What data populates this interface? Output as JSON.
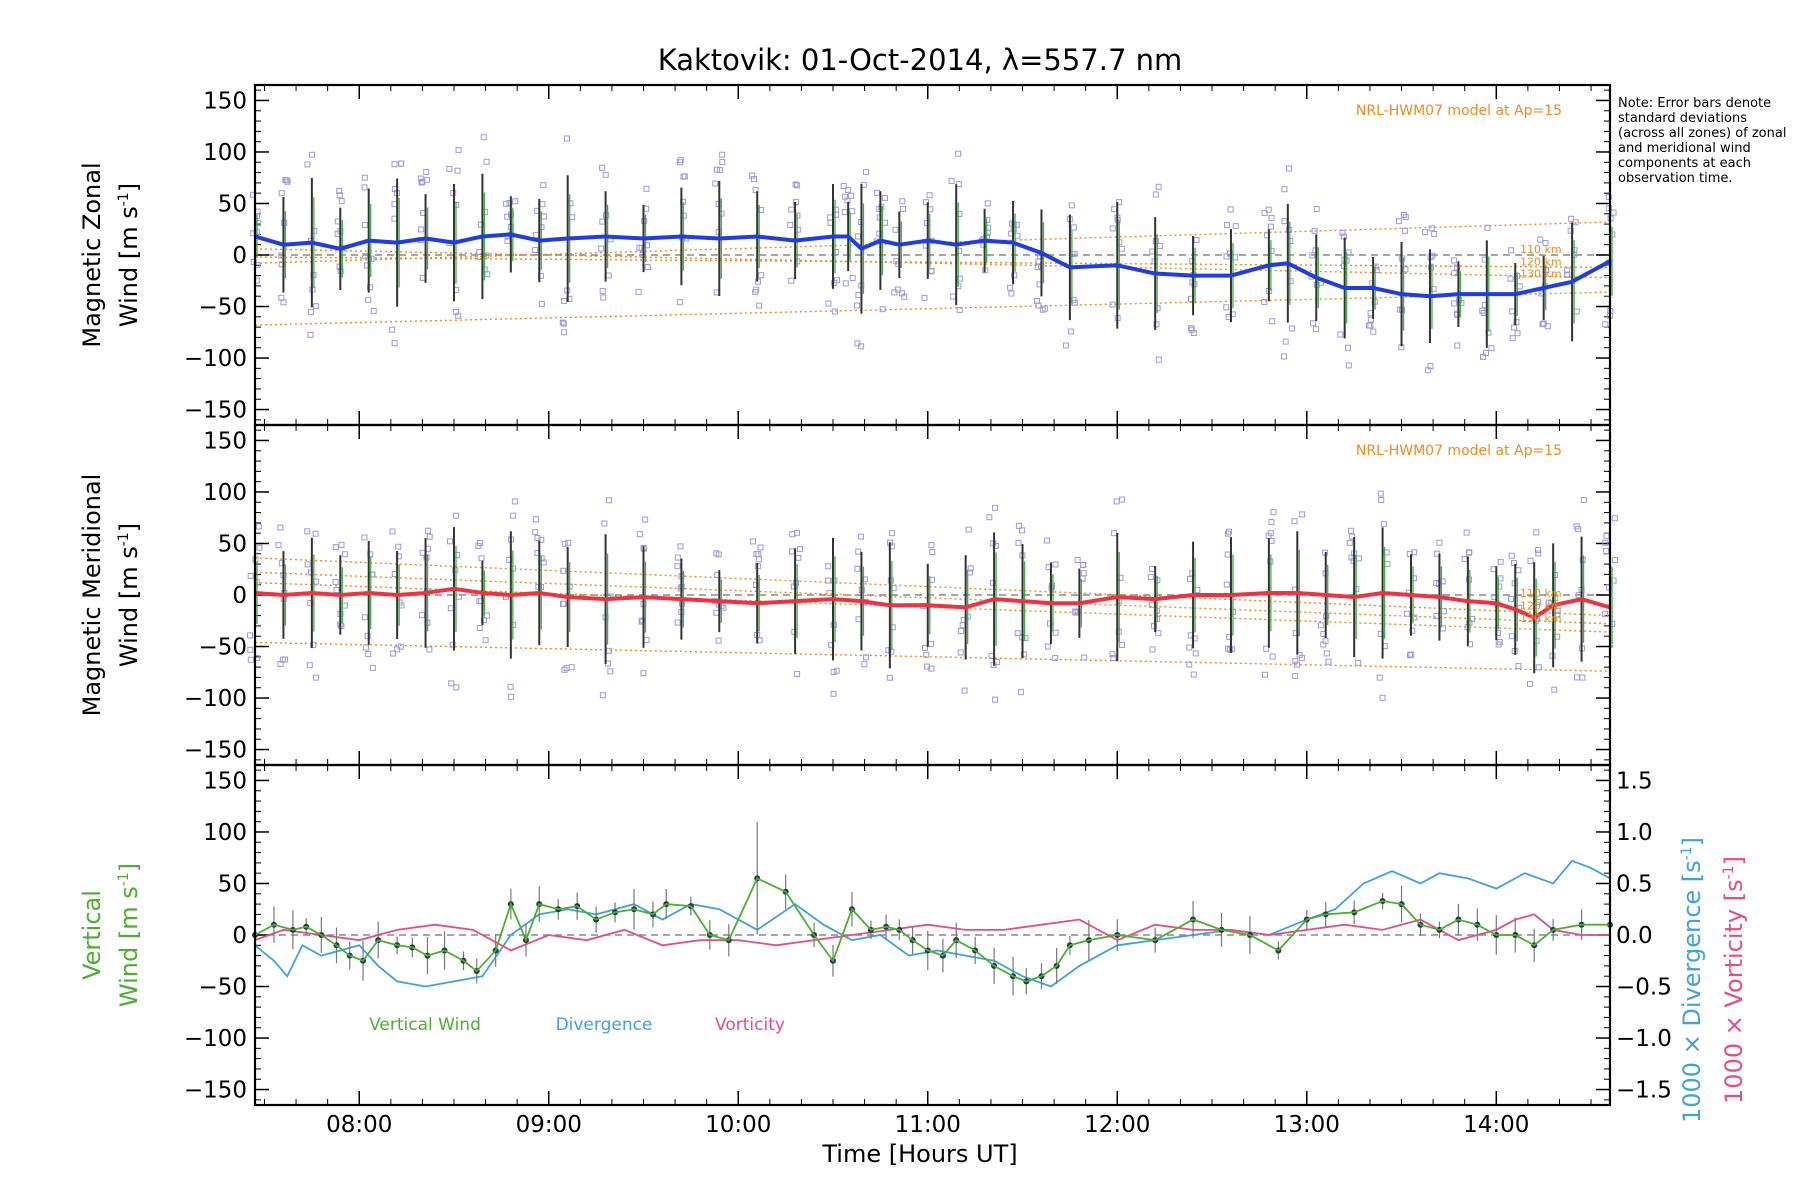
{
  "title": "Kaktovik: 01-Oct-2014, λ=557.7 nm",
  "note": "Note: Error bars denote standard deviations (across all zones) of zonal and meridional wind components at each observation time.",
  "xaxis": {
    "label": "Time [Hours UT]",
    "range_hours": [
      7.45,
      14.6
    ],
    "tick_hours": [
      8,
      9,
      10,
      11,
      12,
      13,
      14
    ],
    "tick_labels": [
      "08:00",
      "09:00",
      "10:00",
      "11:00",
      "12:00",
      "13:00",
      "14:00"
    ]
  },
  "colors": {
    "zonal": "#1f3de6",
    "meridional": "#f2303f",
    "model": "#f28a1e",
    "scatter": "#9a9ae0",
    "vertical": "#4caf2e",
    "divergence": "#3fa3d8",
    "vorticity": "#ec4a84",
    "errbar": "#333333"
  },
  "chart_data": [
    {
      "type": "line",
      "panel": "zonal",
      "ylabel_lines": [
        "Magnetic Zonal",
        "Wind [m s-1]"
      ],
      "ylim": [
        -165,
        165
      ],
      "y_ticks": [
        150,
        100,
        50,
        0,
        -50,
        -100,
        -150
      ],
      "y_tick_labels": [
        "150",
        "100",
        "50",
        "0",
        "−50",
        "−100",
        "−150"
      ],
      "annotation": "NRL-HWM07 model at Ap=15",
      "model_labels": [
        "110 km",
        "120 km",
        "130 km"
      ],
      "series": [
        {
          "name": "Zonal wind",
          "x": [
            7.45,
            7.6,
            7.75,
            7.9,
            8.05,
            8.2,
            8.35,
            8.5,
            8.65,
            8.8,
            8.95,
            9.1,
            9.3,
            9.5,
            9.7,
            9.9,
            10.1,
            10.3,
            10.5,
            10.58,
            10.65,
            10.75,
            10.85,
            11.0,
            11.15,
            11.3,
            11.45,
            11.6,
            11.75,
            12.0,
            12.2,
            12.4,
            12.6,
            12.8,
            12.9,
            13.05,
            13.2,
            13.35,
            13.5,
            13.65,
            13.8,
            13.95,
            14.1,
            14.25,
            14.4,
            14.6
          ],
          "values": [
            18,
            10,
            12,
            6,
            14,
            12,
            16,
            12,
            18,
            20,
            14,
            16,
            18,
            16,
            18,
            16,
            18,
            14,
            18,
            18,
            6,
            14,
            10,
            14,
            10,
            14,
            12,
            2,
            -12,
            -10,
            -18,
            -20,
            -20,
            -10,
            -8,
            -22,
            -32,
            -32,
            -38,
            -40,
            -38,
            -38,
            -38,
            -32,
            -26,
            -6
          ]
        }
      ],
      "model_curves": [
        {
          "name": "high",
          "x": [
            7.45,
            14.6
          ],
          "values": [
            -8,
            32
          ]
        },
        {
          "name": "mid-1",
          "x": [
            7.45,
            14.6
          ],
          "values": [
            -2,
            -12
          ]
        },
        {
          "name": "mid-2",
          "x": [
            7.45,
            14.6
          ],
          "values": [
            6,
            -22
          ]
        },
        {
          "name": "low",
          "x": [
            7.45,
            14.6
          ],
          "values": [
            -68,
            -36
          ]
        }
      ]
    },
    {
      "type": "line",
      "panel": "meridional",
      "ylabel_lines": [
        "Magnetic Meridional",
        "Wind [m s-1]"
      ],
      "ylim": [
        -165,
        165
      ],
      "y_ticks": [
        150,
        100,
        50,
        0,
        -50,
        -100,
        -150
      ],
      "y_tick_labels": [
        "150",
        "100",
        "50",
        "0",
        "−50",
        "−100",
        "−150"
      ],
      "annotation": "NRL-HWM07 model at Ap=15",
      "model_labels": [
        "110 km",
        "120 km",
        "130 km"
      ],
      "series": [
        {
          "name": "Meridional wind",
          "x": [
            7.45,
            7.6,
            7.75,
            7.9,
            8.05,
            8.2,
            8.35,
            8.5,
            8.65,
            8.8,
            8.95,
            9.1,
            9.3,
            9.5,
            9.7,
            9.9,
            10.1,
            10.3,
            10.5,
            10.65,
            10.8,
            11.0,
            11.2,
            11.35,
            11.5,
            11.65,
            11.8,
            12.0,
            12.2,
            12.4,
            12.6,
            12.8,
            12.95,
            13.1,
            13.25,
            13.4,
            13.55,
            13.7,
            13.85,
            14.0,
            14.1,
            14.2,
            14.3,
            14.45,
            14.6
          ],
          "values": [
            2,
            0,
            2,
            0,
            2,
            0,
            2,
            6,
            2,
            0,
            2,
            -2,
            -4,
            -2,
            -4,
            -6,
            -8,
            -6,
            -4,
            -6,
            -10,
            -10,
            -12,
            -4,
            -6,
            -8,
            -8,
            -2,
            -4,
            0,
            0,
            2,
            2,
            0,
            -2,
            2,
            0,
            -2,
            -6,
            -8,
            -14,
            -22,
            -10,
            -4,
            -12
          ]
        }
      ],
      "model_curves": [
        {
          "name": "high",
          "x": [
            7.45,
            14.6
          ],
          "values": [
            36,
            -20
          ]
        },
        {
          "name": "mid-1",
          "x": [
            7.45,
            14.6
          ],
          "values": [
            22,
            -28
          ]
        },
        {
          "name": "mid-2",
          "x": [
            7.45,
            14.6
          ],
          "values": [
            12,
            -36
          ]
        },
        {
          "name": "low",
          "x": [
            7.45,
            14.6
          ],
          "values": [
            -46,
            -74
          ]
        }
      ]
    },
    {
      "type": "line",
      "panel": "vertical",
      "ylabel_lines": [
        "Vertical",
        "Wind [m s-1]"
      ],
      "ylim": [
        -165,
        165
      ],
      "y_ticks": [
        150,
        100,
        50,
        0,
        -50,
        -100,
        -150
      ],
      "y_tick_labels": [
        "150",
        "100",
        "50",
        "0",
        "−50",
        "−100",
        "−150"
      ],
      "y2label_lines": [
        "1000 × Divergence [s-1]",
        "1000 × Vorticity [s-1]"
      ],
      "y2lim": [
        -1.65,
        1.65
      ],
      "y2_ticks": [
        1.5,
        1.0,
        0.5,
        0.0,
        -0.5,
        -1.0,
        -1.5
      ],
      "y2_tick_labels": [
        "1.5",
        "1.0",
        "0.5",
        "0.0",
        "−0.5",
        "−1.0",
        "−1.5"
      ],
      "legend": [
        "Vertical Wind",
        "Divergence",
        "Vorticity"
      ],
      "series": [
        {
          "name": "Vertical Wind",
          "x": [
            7.45,
            7.55,
            7.65,
            7.72,
            7.8,
            7.88,
            7.95,
            8.02,
            8.1,
            8.2,
            8.28,
            8.36,
            8.45,
            8.55,
            8.62,
            8.72,
            8.8,
            8.88,
            8.95,
            9.05,
            9.15,
            9.25,
            9.35,
            9.45,
            9.55,
            9.62,
            9.75,
            9.85,
            9.95,
            10.1,
            10.25,
            10.4,
            10.5,
            10.6,
            10.7,
            10.78,
            10.85,
            10.92,
            11.0,
            11.08,
            11.15,
            11.25,
            11.35,
            11.45,
            11.52,
            11.6,
            11.68,
            11.75,
            11.85,
            12.0,
            12.2,
            12.4,
            12.55,
            12.7,
            12.85,
            13.0,
            13.1,
            13.25,
            13.4,
            13.5,
            13.6,
            13.7,
            13.8,
            13.9,
            14.0,
            14.1,
            14.2,
            14.3,
            14.45,
            14.6
          ],
          "values": [
            0,
            10,
            5,
            8,
            0,
            -10,
            -20,
            -25,
            -5,
            -10,
            -12,
            -20,
            -15,
            -25,
            -35,
            -15,
            30,
            -5,
            30,
            25,
            28,
            15,
            22,
            25,
            20,
            30,
            28,
            0,
            -5,
            55,
            42,
            0,
            -25,
            25,
            5,
            8,
            5,
            -5,
            -15,
            -20,
            -5,
            -15,
            -30,
            -40,
            -45,
            -40,
            -30,
            -10,
            -5,
            0,
            -5,
            15,
            5,
            0,
            -15,
            15,
            20,
            22,
            33,
            30,
            10,
            5,
            15,
            10,
            0,
            0,
            -10,
            5,
            10,
            10
          ]
        },
        {
          "name": "Divergence",
          "x": [
            7.45,
            7.55,
            7.62,
            7.7,
            7.8,
            7.9,
            8.0,
            8.1,
            8.2,
            8.35,
            8.5,
            8.65,
            8.8,
            8.95,
            9.1,
            9.25,
            9.45,
            9.6,
            9.75,
            9.9,
            10.1,
            10.3,
            10.45,
            10.6,
            10.75,
            10.9,
            11.05,
            11.2,
            11.35,
            11.5,
            11.65,
            11.8,
            12.0,
            12.2,
            12.4,
            12.6,
            12.8,
            13.0,
            13.15,
            13.3,
            13.45,
            13.6,
            13.7,
            13.85,
            14.0,
            14.15,
            14.3,
            14.4,
            14.5,
            14.6
          ],
          "values": [
            -0.1,
            -0.25,
            -0.4,
            -0.1,
            -0.2,
            -0.15,
            -0.1,
            -0.3,
            -0.45,
            -0.5,
            -0.45,
            -0.4,
            0.0,
            0.2,
            0.25,
            0.2,
            0.3,
            0.15,
            0.3,
            0.25,
            0.05,
            0.3,
            0.1,
            -0.05,
            0.0,
            -0.2,
            -0.15,
            -0.2,
            -0.25,
            -0.4,
            -0.5,
            -0.3,
            -0.1,
            -0.05,
            0.0,
            0.05,
            0.0,
            0.15,
            0.25,
            0.5,
            0.62,
            0.5,
            0.6,
            0.55,
            0.45,
            0.6,
            0.5,
            0.72,
            0.65,
            0.55
          ]
        },
        {
          "name": "Vorticity",
          "x": [
            7.45,
            7.6,
            7.8,
            8.0,
            8.2,
            8.4,
            8.6,
            8.8,
            9.0,
            9.2,
            9.4,
            9.6,
            9.8,
            10.0,
            10.2,
            10.4,
            10.6,
            10.8,
            11.0,
            11.2,
            11.4,
            11.6,
            11.8,
            12.0,
            12.2,
            12.4,
            12.6,
            12.8,
            13.0,
            13.2,
            13.4,
            13.6,
            13.8,
            14.0,
            14.1,
            14.2,
            14.3,
            14.45,
            14.6
          ],
          "values": [
            -0.05,
            0.05,
            0.0,
            -0.05,
            0.05,
            0.1,
            0.05,
            -0.15,
            0.0,
            -0.05,
            0.05,
            -0.1,
            -0.05,
            -0.05,
            -0.1,
            -0.05,
            0.0,
            0.05,
            0.1,
            0.05,
            0.05,
            0.1,
            0.15,
            -0.05,
            0.1,
            0.05,
            0.05,
            0.0,
            0.05,
            0.1,
            0.05,
            0.15,
            -0.05,
            0.05,
            0.15,
            0.2,
            0.05,
            0.0,
            0.0
          ]
        }
      ]
    }
  ]
}
